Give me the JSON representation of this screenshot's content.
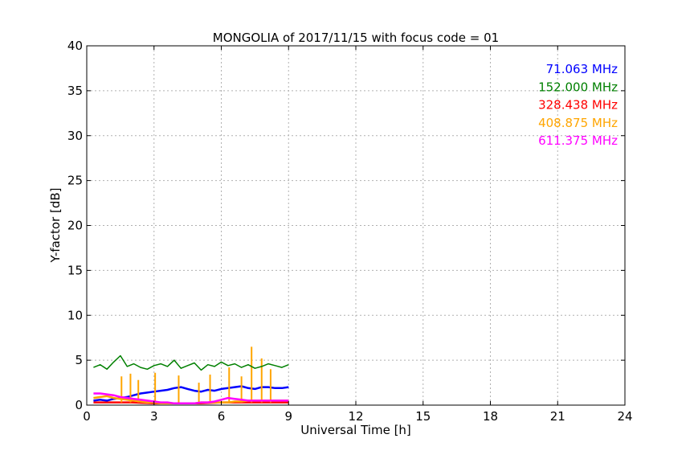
{
  "chart_data": {
    "type": "line",
    "title": "MONGOLIA of 2017/11/15 with focus code = 01",
    "xlabel": "Universal Time [h]",
    "ylabel": "Y-factor [dB]",
    "xlim": [
      0,
      24
    ],
    "ylim": [
      0,
      40
    ],
    "xticks": [
      0,
      3,
      6,
      9,
      12,
      15,
      18,
      21,
      24
    ],
    "yticks": [
      0,
      5,
      10,
      15,
      20,
      25,
      30,
      35,
      40
    ],
    "grid": true,
    "legend_position": "top-right",
    "series": [
      {
        "name": "71.063 MHz",
        "color": "#0000ff",
        "x": [
          0.3,
          0.6,
          0.9,
          1.2,
          1.5,
          1.8,
          2.1,
          2.4,
          2.7,
          3.0,
          3.3,
          3.6,
          3.9,
          4.2,
          4.5,
          4.8,
          5.1,
          5.4,
          5.7,
          6.0,
          6.3,
          6.6,
          6.9,
          7.2,
          7.5,
          7.8,
          8.1,
          8.4,
          8.7,
          9.0
        ],
        "y": [
          0.5,
          0.6,
          0.5,
          0.7,
          0.8,
          0.9,
          1.1,
          1.3,
          1.4,
          1.5,
          1.6,
          1.7,
          1.9,
          2.0,
          1.8,
          1.6,
          1.5,
          1.7,
          1.6,
          1.8,
          1.9,
          2.0,
          2.1,
          1.9,
          1.8,
          2.0,
          2.0,
          1.9,
          1.9,
          2.0
        ]
      },
      {
        "name": "152.000 MHz",
        "color": "#008000",
        "x": [
          0.3,
          0.6,
          0.9,
          1.2,
          1.5,
          1.8,
          2.1,
          2.4,
          2.7,
          3.0,
          3.3,
          3.6,
          3.9,
          4.2,
          4.5,
          4.8,
          5.1,
          5.4,
          5.7,
          6.0,
          6.3,
          6.6,
          6.9,
          7.2,
          7.5,
          7.8,
          8.1,
          8.4,
          8.7,
          9.0
        ],
        "y": [
          4.2,
          4.5,
          4.0,
          4.8,
          5.5,
          4.3,
          4.6,
          4.2,
          4.0,
          4.4,
          4.6,
          4.3,
          5.0,
          4.1,
          4.4,
          4.7,
          3.9,
          4.5,
          4.3,
          4.8,
          4.4,
          4.6,
          4.2,
          4.5,
          4.1,
          4.3,
          4.6,
          4.4,
          4.2,
          4.5
        ]
      },
      {
        "name": "328.438 MHz",
        "color": "#ff0000",
        "x": [
          0.3,
          1.0,
          2.0,
          3.0,
          4.0,
          5.0,
          6.0,
          7.0,
          8.0,
          9.0
        ],
        "y": [
          0.3,
          0.3,
          0.3,
          0.2,
          0.2,
          0.2,
          0.3,
          0.3,
          0.3,
          0.3
        ]
      },
      {
        "name": "408.875 MHz",
        "color": "#ffa500",
        "x": [
          0.3,
          0.6,
          0.9,
          1.2,
          1.5,
          1.8,
          2.1,
          2.4,
          2.7,
          3.0,
          3.3,
          3.6,
          3.9,
          4.2,
          4.5,
          4.8,
          5.1,
          5.4,
          5.7,
          6.0,
          6.3,
          6.6,
          6.9,
          7.2,
          7.5,
          7.8,
          8.1,
          8.4,
          8.7,
          9.0
        ],
        "y": [
          0.8,
          0.9,
          1.0,
          0.8,
          0.7,
          0.6,
          0.5,
          0.4,
          0.3,
          0.3,
          0.2,
          0.2,
          0.2,
          0.2,
          0.2,
          0.2,
          0.3,
          0.3,
          0.3,
          0.3,
          0.3,
          0.4,
          0.4,
          0.5,
          0.5,
          0.5,
          0.5,
          0.5,
          0.5,
          0.5
        ],
        "spikes": [
          [
            1.55,
            3.2
          ],
          [
            1.95,
            3.5
          ],
          [
            2.3,
            2.8
          ],
          [
            3.05,
            3.6
          ],
          [
            4.1,
            3.3
          ],
          [
            5.0,
            2.5
          ],
          [
            5.5,
            3.4
          ],
          [
            6.35,
            4.2
          ],
          [
            6.9,
            3.2
          ],
          [
            7.35,
            6.5
          ],
          [
            7.8,
            5.2
          ],
          [
            8.2,
            4.0
          ]
        ]
      },
      {
        "name": "611.375 MHz",
        "color": "#ff00ff",
        "x": [
          0.3,
          0.6,
          0.9,
          1.2,
          1.5,
          1.8,
          2.1,
          2.4,
          2.7,
          3.0,
          3.3,
          3.6,
          3.9,
          4.2,
          4.5,
          4.8,
          5.1,
          5.4,
          5.7,
          6.0,
          6.3,
          6.6,
          6.9,
          7.2,
          7.5,
          7.8,
          8.1,
          8.4,
          8.7,
          9.0
        ],
        "y": [
          1.3,
          1.3,
          1.2,
          1.1,
          0.9,
          0.8,
          0.7,
          0.6,
          0.5,
          0.4,
          0.3,
          0.3,
          0.2,
          0.2,
          0.2,
          0.2,
          0.3,
          0.3,
          0.4,
          0.6,
          0.8,
          0.7,
          0.6,
          0.5,
          0.5,
          0.5,
          0.5,
          0.5,
          0.5,
          0.5
        ]
      }
    ]
  }
}
